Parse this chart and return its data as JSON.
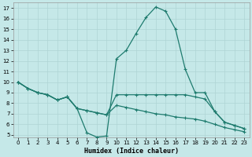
{
  "xlabel": "Humidex (Indice chaleur)",
  "bg_color": "#c5e8e8",
  "grid_color": "#afd4d4",
  "line_color": "#1e7b6e",
  "xlim": [
    -0.5,
    23.5
  ],
  "ylim": [
    4.8,
    17.5
  ],
  "xticks": [
    0,
    1,
    2,
    3,
    4,
    5,
    6,
    7,
    8,
    9,
    10,
    11,
    12,
    13,
    14,
    15,
    16,
    17,
    18,
    19,
    20,
    21,
    22,
    23
  ],
  "yticks": [
    5,
    6,
    7,
    8,
    9,
    10,
    11,
    12,
    13,
    14,
    15,
    16,
    17
  ],
  "line_peak_x": [
    0,
    1,
    2,
    3,
    4,
    5,
    6,
    7,
    8,
    9,
    10,
    11,
    12,
    13,
    14,
    15,
    16,
    17,
    18,
    19,
    20,
    21,
    22,
    23
  ],
  "line_peak_y": [
    10.0,
    9.4,
    9.0,
    8.8,
    8.3,
    8.6,
    7.5,
    5.2,
    4.8,
    4.9,
    12.2,
    13.0,
    14.6,
    16.1,
    17.1,
    16.7,
    15.0,
    11.2,
    9.0,
    9.0,
    7.2,
    6.2,
    5.9,
    5.6
  ],
  "line_flat_x": [
    0,
    1,
    2,
    3,
    4,
    5,
    6,
    7,
    8,
    9,
    10,
    11,
    12,
    13,
    14,
    15,
    16,
    17,
    18,
    19,
    20,
    21,
    22,
    23
  ],
  "line_flat_y": [
    10.0,
    9.4,
    9.0,
    8.8,
    8.3,
    8.6,
    7.5,
    7.3,
    7.1,
    6.9,
    8.8,
    8.8,
    8.8,
    8.8,
    8.8,
    8.8,
    8.8,
    8.8,
    8.6,
    8.4,
    7.2,
    6.2,
    5.9,
    5.6
  ],
  "line_low_x": [
    0,
    1,
    2,
    3,
    4,
    5,
    6,
    7,
    8,
    9,
    10,
    11,
    12,
    13,
    14,
    15,
    16,
    17,
    18,
    19,
    20,
    21,
    22,
    23
  ],
  "line_low_y": [
    10.0,
    9.4,
    9.0,
    8.8,
    8.3,
    8.6,
    7.5,
    7.3,
    7.1,
    6.9,
    7.8,
    7.6,
    7.4,
    7.2,
    7.0,
    6.9,
    6.7,
    6.6,
    6.5,
    6.3,
    6.0,
    5.7,
    5.5,
    5.3
  ]
}
